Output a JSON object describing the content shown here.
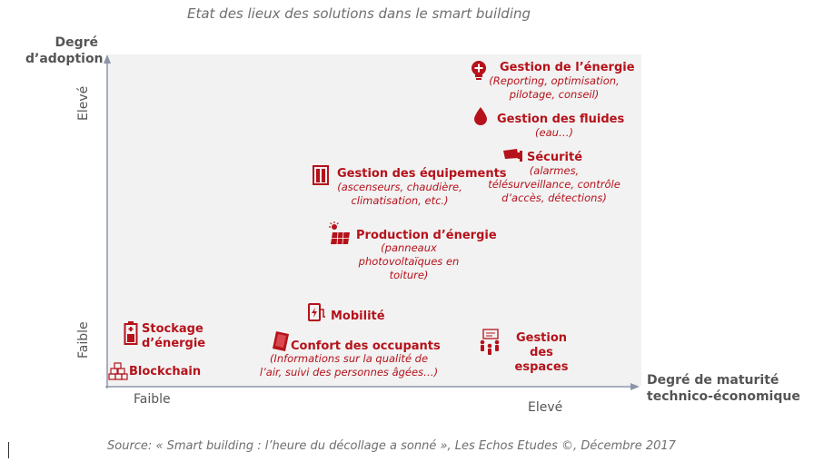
{
  "title": "Etat des lieux des solutions dans le smart building",
  "axes": {
    "y_title_line1": "Degré",
    "y_title_line2": "d’adoption",
    "x_title_line1": "Degré de maturité",
    "x_title_line2": "technico-économique",
    "y_high": "Elevé",
    "y_low": "Faible",
    "x_low": "Faible",
    "x_high": "Elevé"
  },
  "items": {
    "energy_mgmt": {
      "title": "Gestion de l’énergie",
      "sub1": "(Reporting, optimisation,",
      "sub2": "pilotage, conseil)",
      "icon": "lightbulb-plus-icon"
    },
    "fluids": {
      "title": "Gestion des fluides",
      "sub1": "(eau…)",
      "icon": "water-drop-icon"
    },
    "security": {
      "title": "Sécurité",
      "sub1": "(alarmes,",
      "sub2": "télésurveillance, contrôle",
      "sub3": "d’accès, détections)",
      "icon": "security-camera-icon"
    },
    "equipment": {
      "title": "Gestion des équipements",
      "sub1": "(ascenseurs, chaudière,",
      "sub2": "climatisation, etc.)",
      "icon": "elevator-icon"
    },
    "production": {
      "title": "Production d’énergie",
      "sub1": "(panneaux",
      "sub2": "photovoltaïques en",
      "sub3": "toiture)",
      "icon": "solar-panel-icon"
    },
    "mobility": {
      "title": "Mobilité",
      "icon": "ev-charger-icon"
    },
    "storage": {
      "title_line1": "Stockage",
      "title_line2": "d’énergie",
      "icon": "battery-icon"
    },
    "comfort": {
      "title": "Confort des occupants",
      "sub1": "(Informations sur la qualité de",
      "sub2": "l’air, suivi des personnes âgées…)",
      "icon": "tablet-icon"
    },
    "spaces": {
      "title_line1": "Gestion des",
      "title_line2": "espaces",
      "icon": "people-screen-icon"
    },
    "blockchain": {
      "title": "Blockchain",
      "icon": "blocks-icon"
    }
  },
  "source": "Source: « Smart building : l’heure du décollage a sonné », Les Echos Etudes ©, Décembre 2017",
  "colors": {
    "accent": "#b5121b",
    "axis": "#8c96a8",
    "text_gray": "#555555",
    "plot_bg": "#f2f2f2"
  }
}
